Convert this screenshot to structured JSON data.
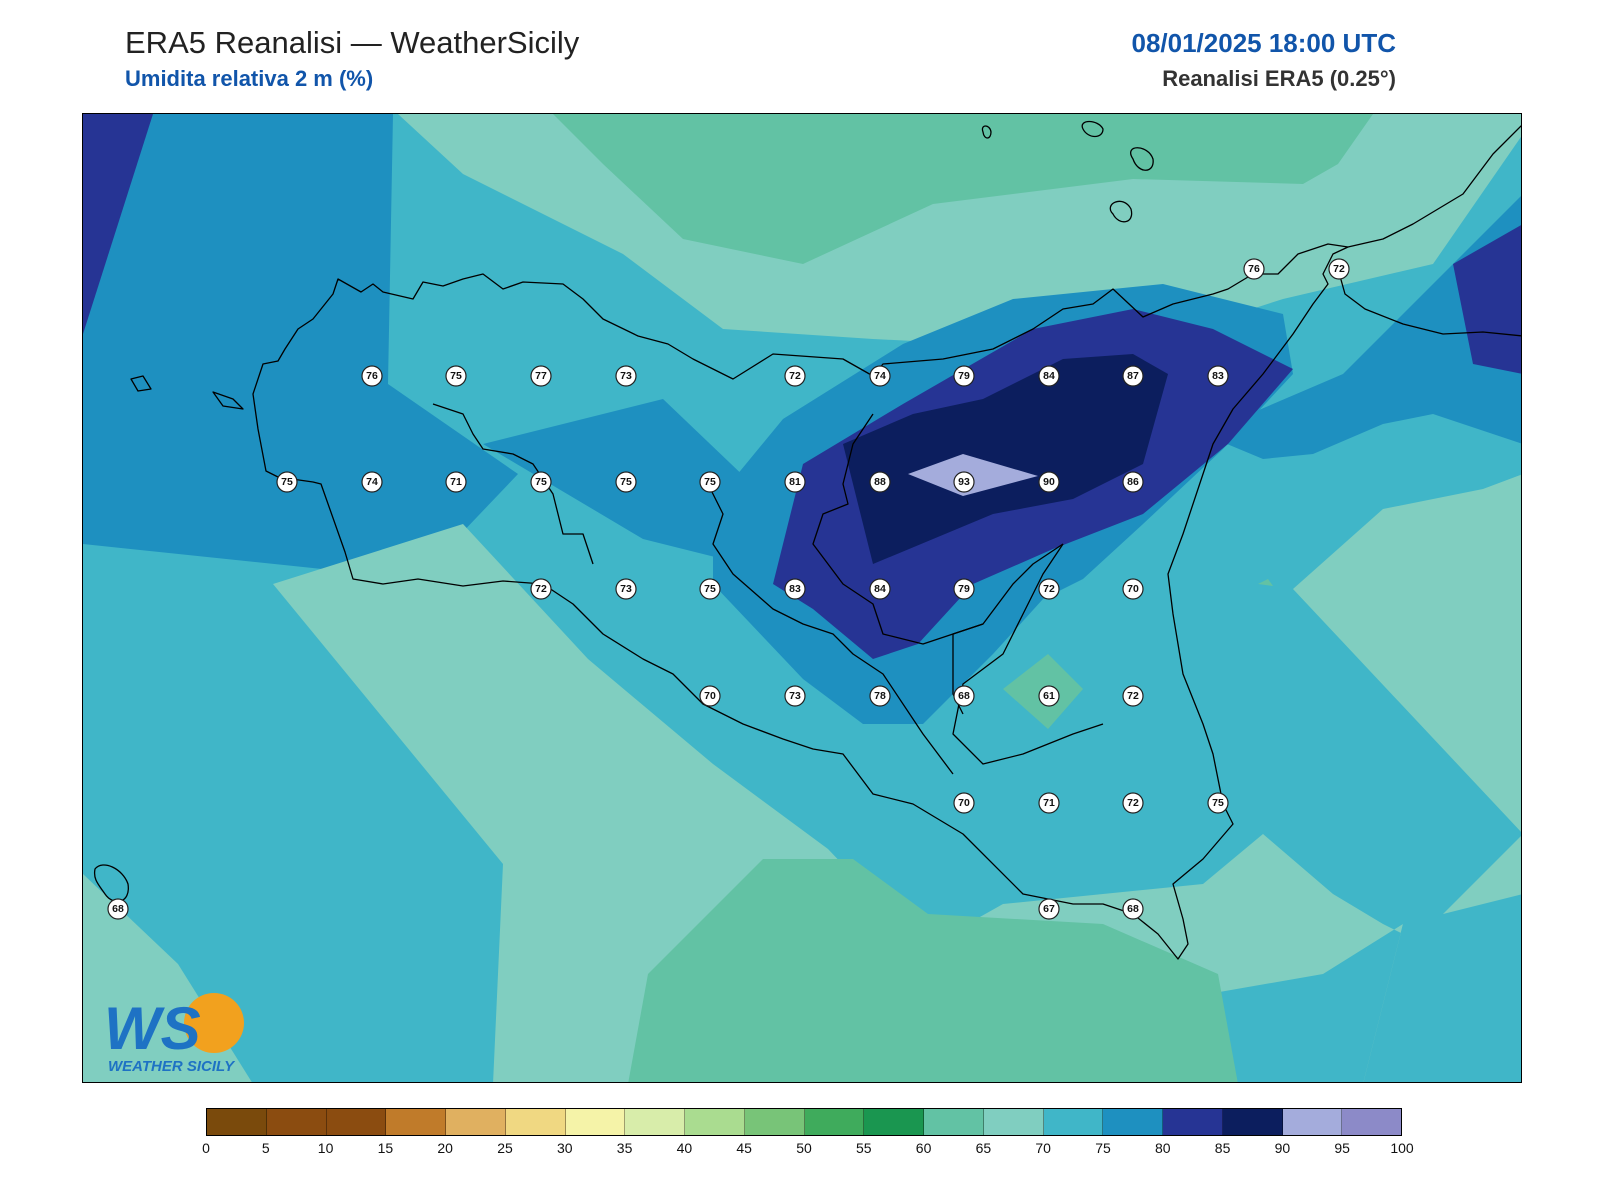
{
  "header": {
    "title": "ERA5 Reanalisi — WeatherSicily",
    "subtitle": "Umidita relativa 2 m (%)",
    "datetime": "08/01/2025 18:00 UTC",
    "source": "Reanalisi ERA5 (0.25°)"
  },
  "logo": {
    "text": "WEATHER SICILY",
    "initials": "WS"
  },
  "stations": [
    {
      "v": "76"
    },
    {
      "v": "72"
    },
    {
      "v": "76"
    },
    {
      "v": "75"
    },
    {
      "v": "77"
    },
    {
      "v": "73"
    },
    {
      "v": "72"
    },
    {
      "v": "74"
    },
    {
      "v": "79"
    },
    {
      "v": "84"
    },
    {
      "v": "87"
    },
    {
      "v": "83"
    },
    {
      "v": "75"
    },
    {
      "v": "74"
    },
    {
      "v": "71"
    },
    {
      "v": "75"
    },
    {
      "v": "75"
    },
    {
      "v": "75"
    },
    {
      "v": "81"
    },
    {
      "v": "88"
    },
    {
      "v": "93"
    },
    {
      "v": "90"
    },
    {
      "v": "86"
    },
    {
      "v": "72"
    },
    {
      "v": "73"
    },
    {
      "v": "75"
    },
    {
      "v": "83"
    },
    {
      "v": "84"
    },
    {
      "v": "79"
    },
    {
      "v": "72"
    },
    {
      "v": "70"
    },
    {
      "v": "70"
    },
    {
      "v": "73"
    },
    {
      "v": "78"
    },
    {
      "v": "68"
    },
    {
      "v": "61"
    },
    {
      "v": "72"
    },
    {
      "v": "70"
    },
    {
      "v": "71"
    },
    {
      "v": "72"
    },
    {
      "v": "75"
    },
    {
      "v": "68"
    },
    {
      "v": "67"
    },
    {
      "v": "68"
    }
  ],
  "colorbar": {
    "ticks": [
      "0",
      "5",
      "10",
      "15",
      "20",
      "25",
      "30",
      "35",
      "40",
      "45",
      "50",
      "55",
      "60",
      "65",
      "70",
      "75",
      "80",
      "85",
      "90",
      "95",
      "100"
    ],
    "colors": [
      "#7a4a0c",
      "#8b4c10",
      "#8b4c10",
      "#c07b2a",
      "#e0b060",
      "#f0d882",
      "#f5f3a8",
      "#d8edaa",
      "#aadc90",
      "#78c478",
      "#3fab5c",
      "#1a9650",
      "#62c2a4",
      "#80cec0",
      "#40b6c8",
      "#1e90c0",
      "#263494",
      "#0c1e5e",
      "#a4acdc",
      "#8c8ac8"
    ]
  }
}
